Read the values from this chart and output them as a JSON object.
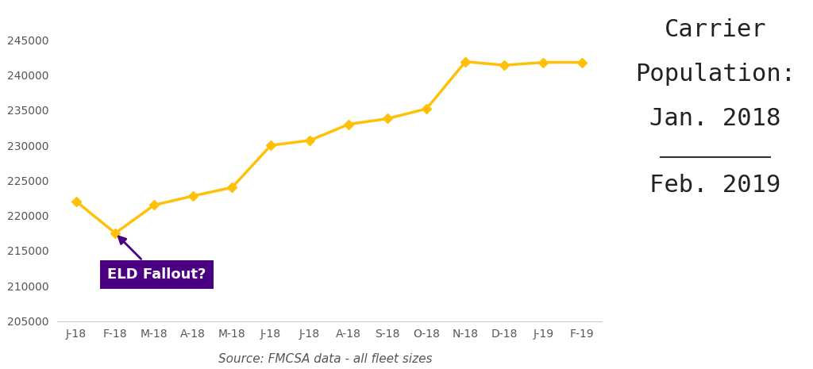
{
  "x_labels": [
    "J-18",
    "F-18",
    "M-18",
    "A-18",
    "M-18",
    "J-18",
    "J-18",
    "A-18",
    "S-18",
    "O-18",
    "N-18",
    "D-18",
    "J-19",
    "F-19"
  ],
  "data_points": [
    222000,
    217500,
    221500,
    222800,
    224000,
    230000,
    230700,
    233000,
    233800,
    235200,
    241900,
    241400,
    241800,
    241800
  ],
  "line_color": "#FFC107",
  "marker_color": "#FFC107",
  "background_color": "#FFFFFF",
  "annotation_text": "ELD Fallout?",
  "annotation_bg": "#4B0082",
  "annotation_text_color": "#FFFFFF",
  "ylim_min": 205000,
  "ylim_max": 247000,
  "yticks": [
    205000,
    210000,
    215000,
    220000,
    225000,
    230000,
    235000,
    240000,
    245000
  ],
  "source_text": "Source: FMCSA data - all fleet sizes",
  "title_line1": "Carrier",
  "title_line2": "Population:",
  "title_line3": "Jan. 2018",
  "title_line4": "Feb. 2019",
  "title_color": "#222222",
  "title_fontsize": 22,
  "source_fontsize": 11,
  "axis_label_fontsize": 10
}
